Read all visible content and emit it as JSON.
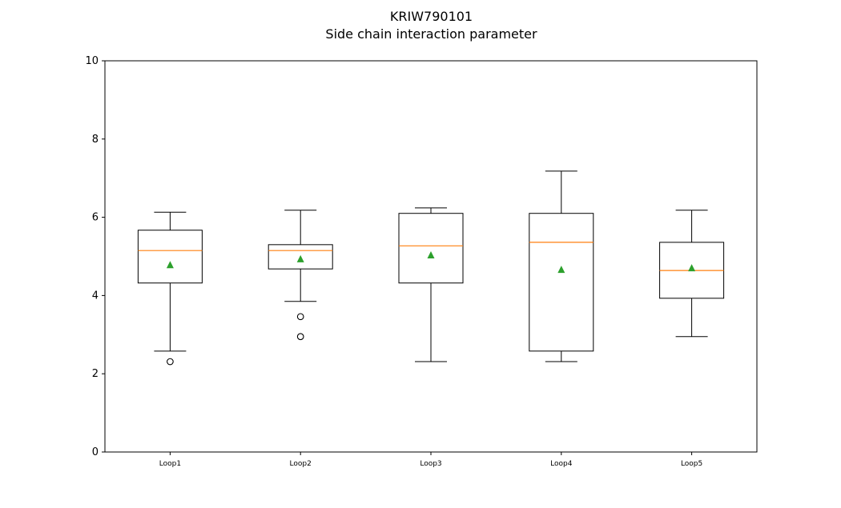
{
  "chart_data": {
    "type": "box",
    "title": "KRIW790101",
    "subtitle": "Side chain interaction parameter",
    "xlabel": "",
    "ylabel": "",
    "ylim": [
      0,
      10
    ],
    "yticks": [
      "0",
      "2",
      "4",
      "6",
      "8",
      "10"
    ],
    "grid": false,
    "categories": [
      "Loop1",
      "Loop2",
      "Loop3",
      "Loop4",
      "Loop5"
    ],
    "boxes": [
      {
        "whisker_low": 2.58,
        "q1": 4.32,
        "median": 5.15,
        "q3": 5.67,
        "whisker_high": 6.13,
        "mean": 4.78,
        "outliers": [
          2.31
        ]
      },
      {
        "whisker_low": 3.85,
        "q1": 4.68,
        "median": 5.15,
        "q3": 5.3,
        "whisker_high": 6.18,
        "mean": 4.93,
        "outliers": [
          3.46,
          2.95
        ]
      },
      {
        "whisker_low": 2.31,
        "q1": 4.32,
        "median": 5.27,
        "q3": 6.1,
        "whisker_high": 6.24,
        "mean": 5.03,
        "outliers": []
      },
      {
        "whisker_low": 2.31,
        "q1": 2.58,
        "median": 5.36,
        "q3": 6.1,
        "whisker_high": 7.18,
        "mean": 4.66,
        "outliers": []
      },
      {
        "whisker_low": 2.95,
        "q1": 3.93,
        "median": 4.64,
        "q3": 5.36,
        "whisker_high": 6.18,
        "mean": 4.7,
        "outliers": []
      }
    ],
    "colors": {
      "box": "#000000",
      "median": "#ff7f0e",
      "mean": "#2ca02c",
      "outlier": "#000000"
    }
  }
}
